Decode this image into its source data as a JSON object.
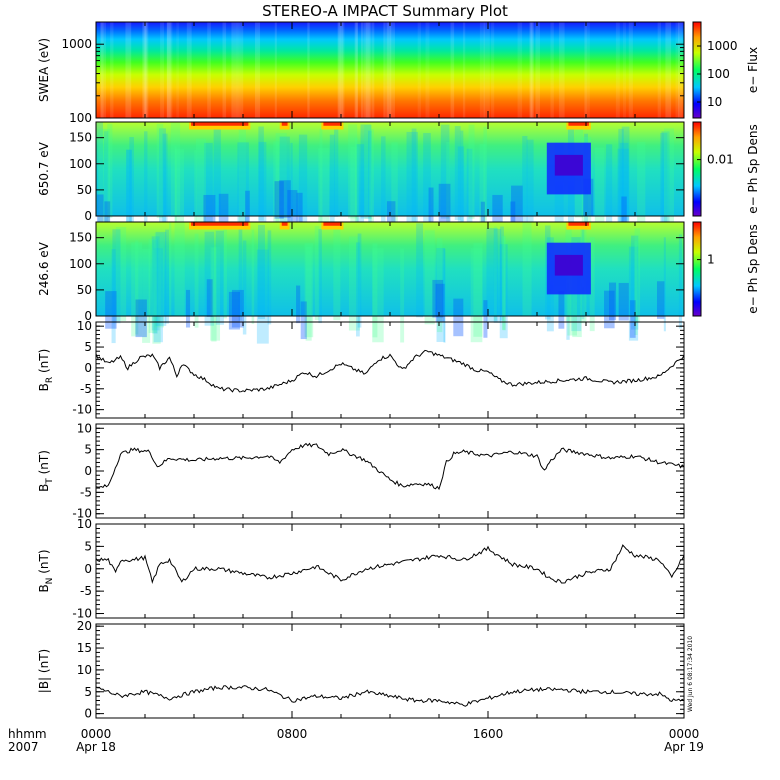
{
  "title": "STEREO-A IMPACT Summary Plot",
  "stamp": "Wed Jun  6 08:17:34 2010",
  "xaxis": {
    "unit_label": "hhmm",
    "year_label": "2007",
    "ticks": [
      "0000",
      "0800",
      "1600",
      "0000"
    ],
    "dates": [
      "Apr 18",
      "Apr 19"
    ],
    "minor_per_interval": 4
  },
  "colors": {
    "line": "#000000",
    "background": "#ffffff"
  },
  "chart_data": [
    {
      "type": "heatmap",
      "ylabel": "SWEA (eV)",
      "yscale": "log",
      "ylim": [
        100,
        2000
      ],
      "yticks": [
        "1000",
        "100"
      ],
      "colorbar_label": "e− Flux",
      "colorbar_ticks": [
        "1000",
        "100",
        "10"
      ],
      "description_rows": "energy increases upward: red at 100 eV, green near 400 eV, blue above 1500 eV"
    },
    {
      "type": "heatmap",
      "ylabel": "650.7 eV",
      "ylim": [
        0,
        180
      ],
      "yticks": [
        "150",
        "100",
        "50",
        "0"
      ],
      "colorbar_label": "e− Ph Sp Dens",
      "colorbar_ticks": [
        "0.01"
      ]
    },
    {
      "type": "heatmap",
      "ylabel": "246.6 eV",
      "ylim": [
        0,
        180
      ],
      "yticks": [
        "150",
        "100",
        "50",
        "0"
      ],
      "colorbar_label": "e− Ph Sp Dens",
      "colorbar_ticks": [
        "1"
      ]
    },
    {
      "type": "line",
      "ylabel": "B",
      "ysub": "R",
      "yunit": "(nT)",
      "ylim": [
        -12,
        11
      ],
      "yticks": [
        "10",
        "5",
        "0",
        "-5",
        "-10"
      ],
      "x_hours": [
        0,
        0.5,
        1,
        1.3,
        1.8,
        2.3,
        2.6,
        3,
        3.3,
        3.5,
        4,
        4.5,
        5,
        6,
        7,
        8,
        8.5,
        9,
        9.5,
        10,
        11,
        11.5,
        12,
        12.5,
        13,
        13.5,
        14,
        14.5,
        15,
        15.5,
        16,
        16.5,
        17,
        18,
        19,
        20,
        21,
        22,
        23,
        24
      ],
      "values": [
        3,
        1,
        2.5,
        0,
        2.5,
        3,
        0,
        2.5,
        -2,
        1,
        -1.5,
        -3,
        -5,
        -5.5,
        -5,
        -3,
        -1,
        -2,
        -0.5,
        1,
        -1.5,
        2,
        3,
        -0.5,
        2.5,
        4,
        3,
        2,
        1,
        -0.5,
        -1,
        -3,
        -4,
        -3.5,
        -3,
        -2.5,
        -3.5,
        -3,
        -2,
        3
      ]
    },
    {
      "type": "line",
      "ylabel": "B",
      "ysub": "T",
      "yunit": "(nT)",
      "ylim": [
        -11,
        11
      ],
      "yticks": [
        "10",
        "5",
        "0",
        "-5",
        "-10"
      ],
      "x_hours": [
        0,
        0.5,
        1,
        1.5,
        2.2,
        2.5,
        3,
        4,
        5,
        6,
        7,
        7.5,
        8,
        8.5,
        9,
        9.5,
        10,
        11,
        12,
        12.5,
        13,
        13.5,
        14,
        14.3,
        14.6,
        15,
        16,
        17,
        18,
        18.3,
        18.5,
        19,
        20,
        21,
        22,
        23,
        24
      ],
      "values": [
        -4,
        -3.5,
        4,
        5,
        4.5,
        1,
        3,
        2.5,
        3,
        3,
        3.5,
        2,
        5,
        6,
        6,
        4,
        5,
        2.5,
        -2,
        -3.5,
        -3,
        -3,
        -4,
        2,
        4,
        4.5,
        3.5,
        4.5,
        3.5,
        0,
        2,
        5,
        4,
        3,
        3.5,
        2,
        1
      ]
    },
    {
      "type": "line",
      "ylabel": "B",
      "ysub": "N",
      "yunit": "(nT)",
      "ylim": [
        -11,
        10
      ],
      "yticks": [
        "10",
        "5",
        "0",
        "-5",
        "-10"
      ],
      "x_hours": [
        0,
        0.5,
        0.8,
        1,
        1.5,
        2,
        2.3,
        2.6,
        3,
        3.5,
        4,
        5,
        6,
        7,
        8,
        9,
        10,
        11,
        12,
        13,
        14,
        15,
        16,
        17,
        18,
        18.5,
        19,
        20,
        21,
        21.5,
        22,
        23,
        23.5,
        24
      ],
      "values": [
        2,
        2,
        -1,
        2,
        2,
        2.5,
        -3,
        1,
        2,
        -3,
        0,
        0,
        -1,
        -2,
        -1,
        0.5,
        -2.5,
        0,
        1,
        2,
        3,
        2,
        4.5,
        1,
        0,
        -2,
        -3,
        -1,
        0,
        5,
        3,
        2,
        -2,
        3
      ]
    },
    {
      "type": "line",
      "ylabel": "|B|",
      "ysub": "",
      "yunit": "(nT)",
      "ylim": [
        -1,
        20.5
      ],
      "yticks": [
        "20",
        "15",
        "10",
        "5",
        "0"
      ],
      "x_hours": [
        0,
        1,
        2,
        3,
        4,
        5,
        6,
        7,
        8,
        9,
        10,
        11,
        12,
        13,
        14,
        15,
        16,
        17,
        18,
        19,
        20,
        21,
        22,
        23,
        23.5,
        24
      ],
      "values": [
        6,
        4,
        5,
        3.5,
        5,
        6,
        6,
        5.5,
        3,
        4,
        3.5,
        5,
        4,
        3,
        3,
        2,
        3.5,
        5,
        5.5,
        5.5,
        5,
        5,
        4.5,
        4.5,
        3,
        3
      ]
    }
  ]
}
